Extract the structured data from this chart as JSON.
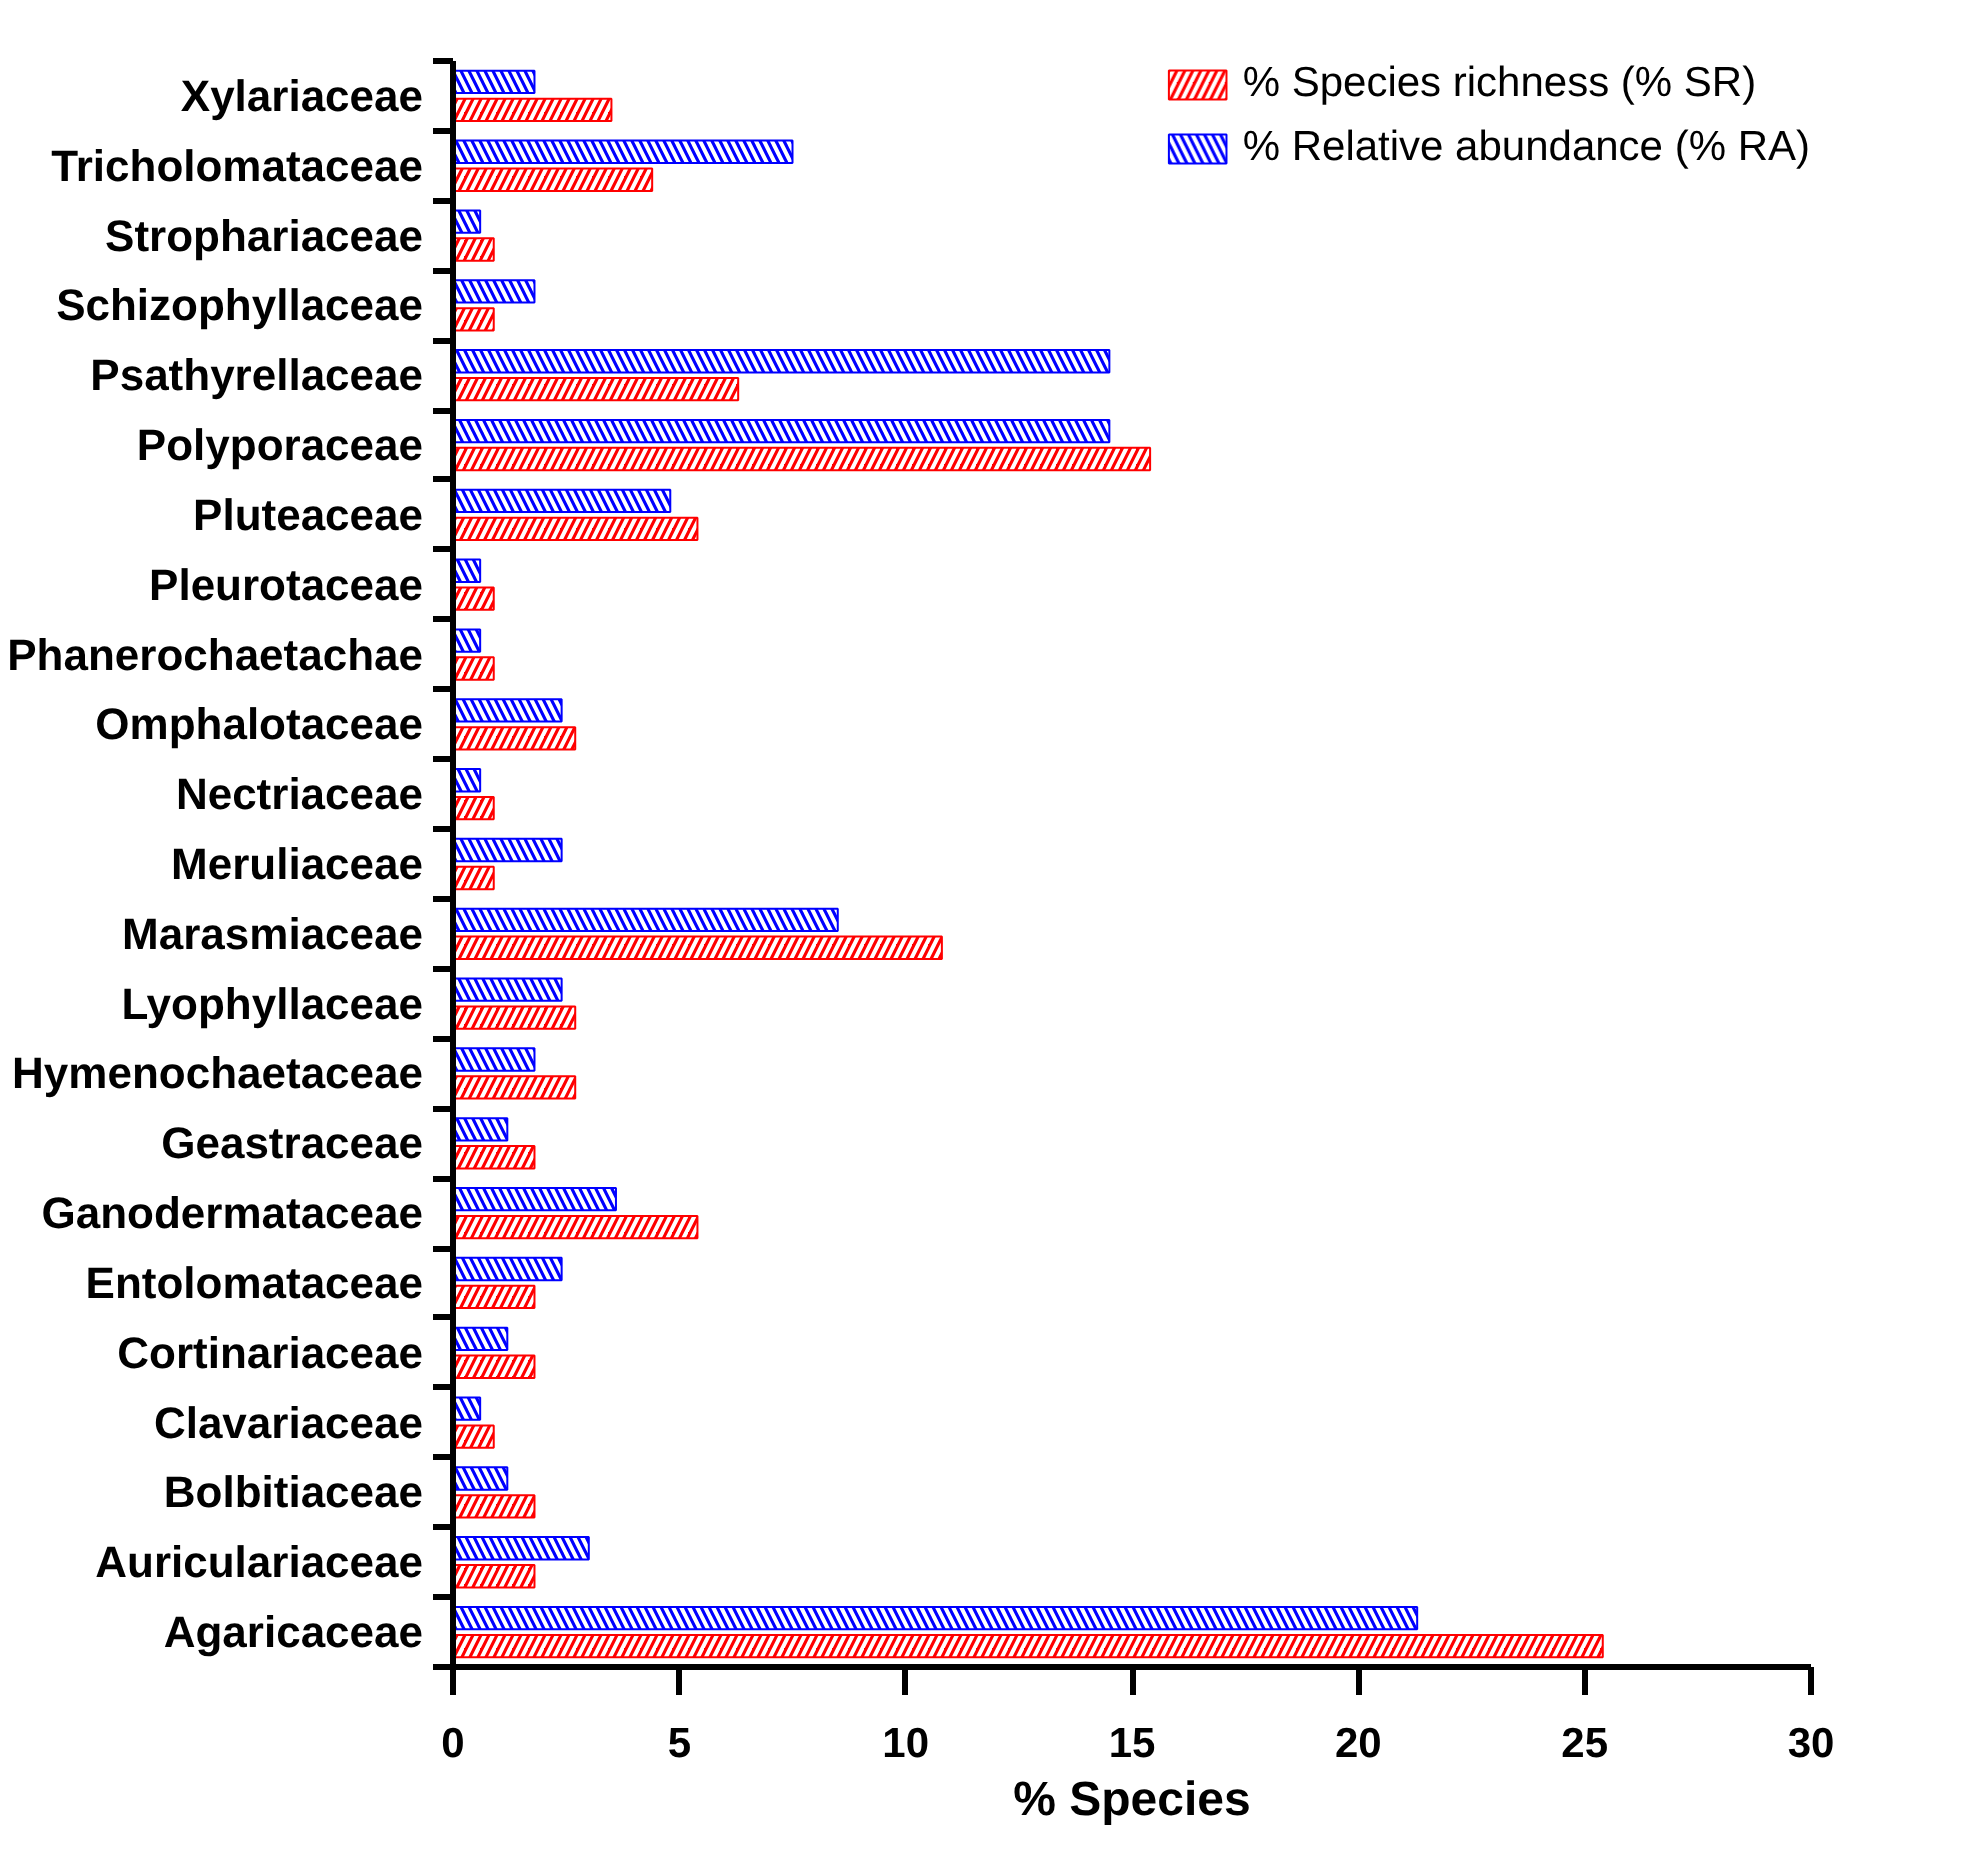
{
  "chart_data": {
    "type": "bar",
    "orientation": "horizontal",
    "xlabel": "% Species",
    "categories": [
      "Xylariaceae",
      "Tricholomataceae",
      "Strophariaceae",
      "Schizophyllaceae",
      "Psathyrellaceae",
      "Polyporaceae",
      "Pluteaceae",
      "Pleurotaceae",
      "Phanerochaetachae",
      "Omphalotaceae",
      "Nectriaceae",
      "Meruliaceae",
      "Marasmiaceae",
      "Lyophyllaceae",
      "Hymenochaetaceae",
      "Geastraceae",
      "Ganodermataceae",
      "Entolomataceae",
      "Cortinariaceae",
      "Clavariaceae",
      "Bolbitiaceae",
      "Auriculariaceae",
      "Agaricaceae"
    ],
    "series": [
      {
        "name": "% Species richness (% SR)",
        "color": "#ff0000",
        "values": [
          3.5,
          4.4,
          0.9,
          0.9,
          6.3,
          15.4,
          5.4,
          0.9,
          0.9,
          2.7,
          0.9,
          0.9,
          10.8,
          2.7,
          2.7,
          1.8,
          5.4,
          1.8,
          1.8,
          0.9,
          1.8,
          1.8,
          25.4
        ]
      },
      {
        "name": "% Relative abundance (% RA)",
        "color": "#0000ff",
        "values": [
          1.8,
          7.5,
          0.6,
          1.8,
          14.5,
          14.5,
          4.8,
          0.6,
          0.6,
          2.4,
          0.6,
          2.4,
          8.5,
          2.4,
          1.8,
          1.2,
          3.6,
          2.4,
          1.2,
          0.6,
          1.2,
          3.0,
          21.3
        ]
      }
    ],
    "xlim": [
      0,
      30
    ],
    "xticks": [
      0,
      5,
      10,
      15,
      20,
      25,
      30
    ],
    "grid": false,
    "legend": "top right"
  }
}
